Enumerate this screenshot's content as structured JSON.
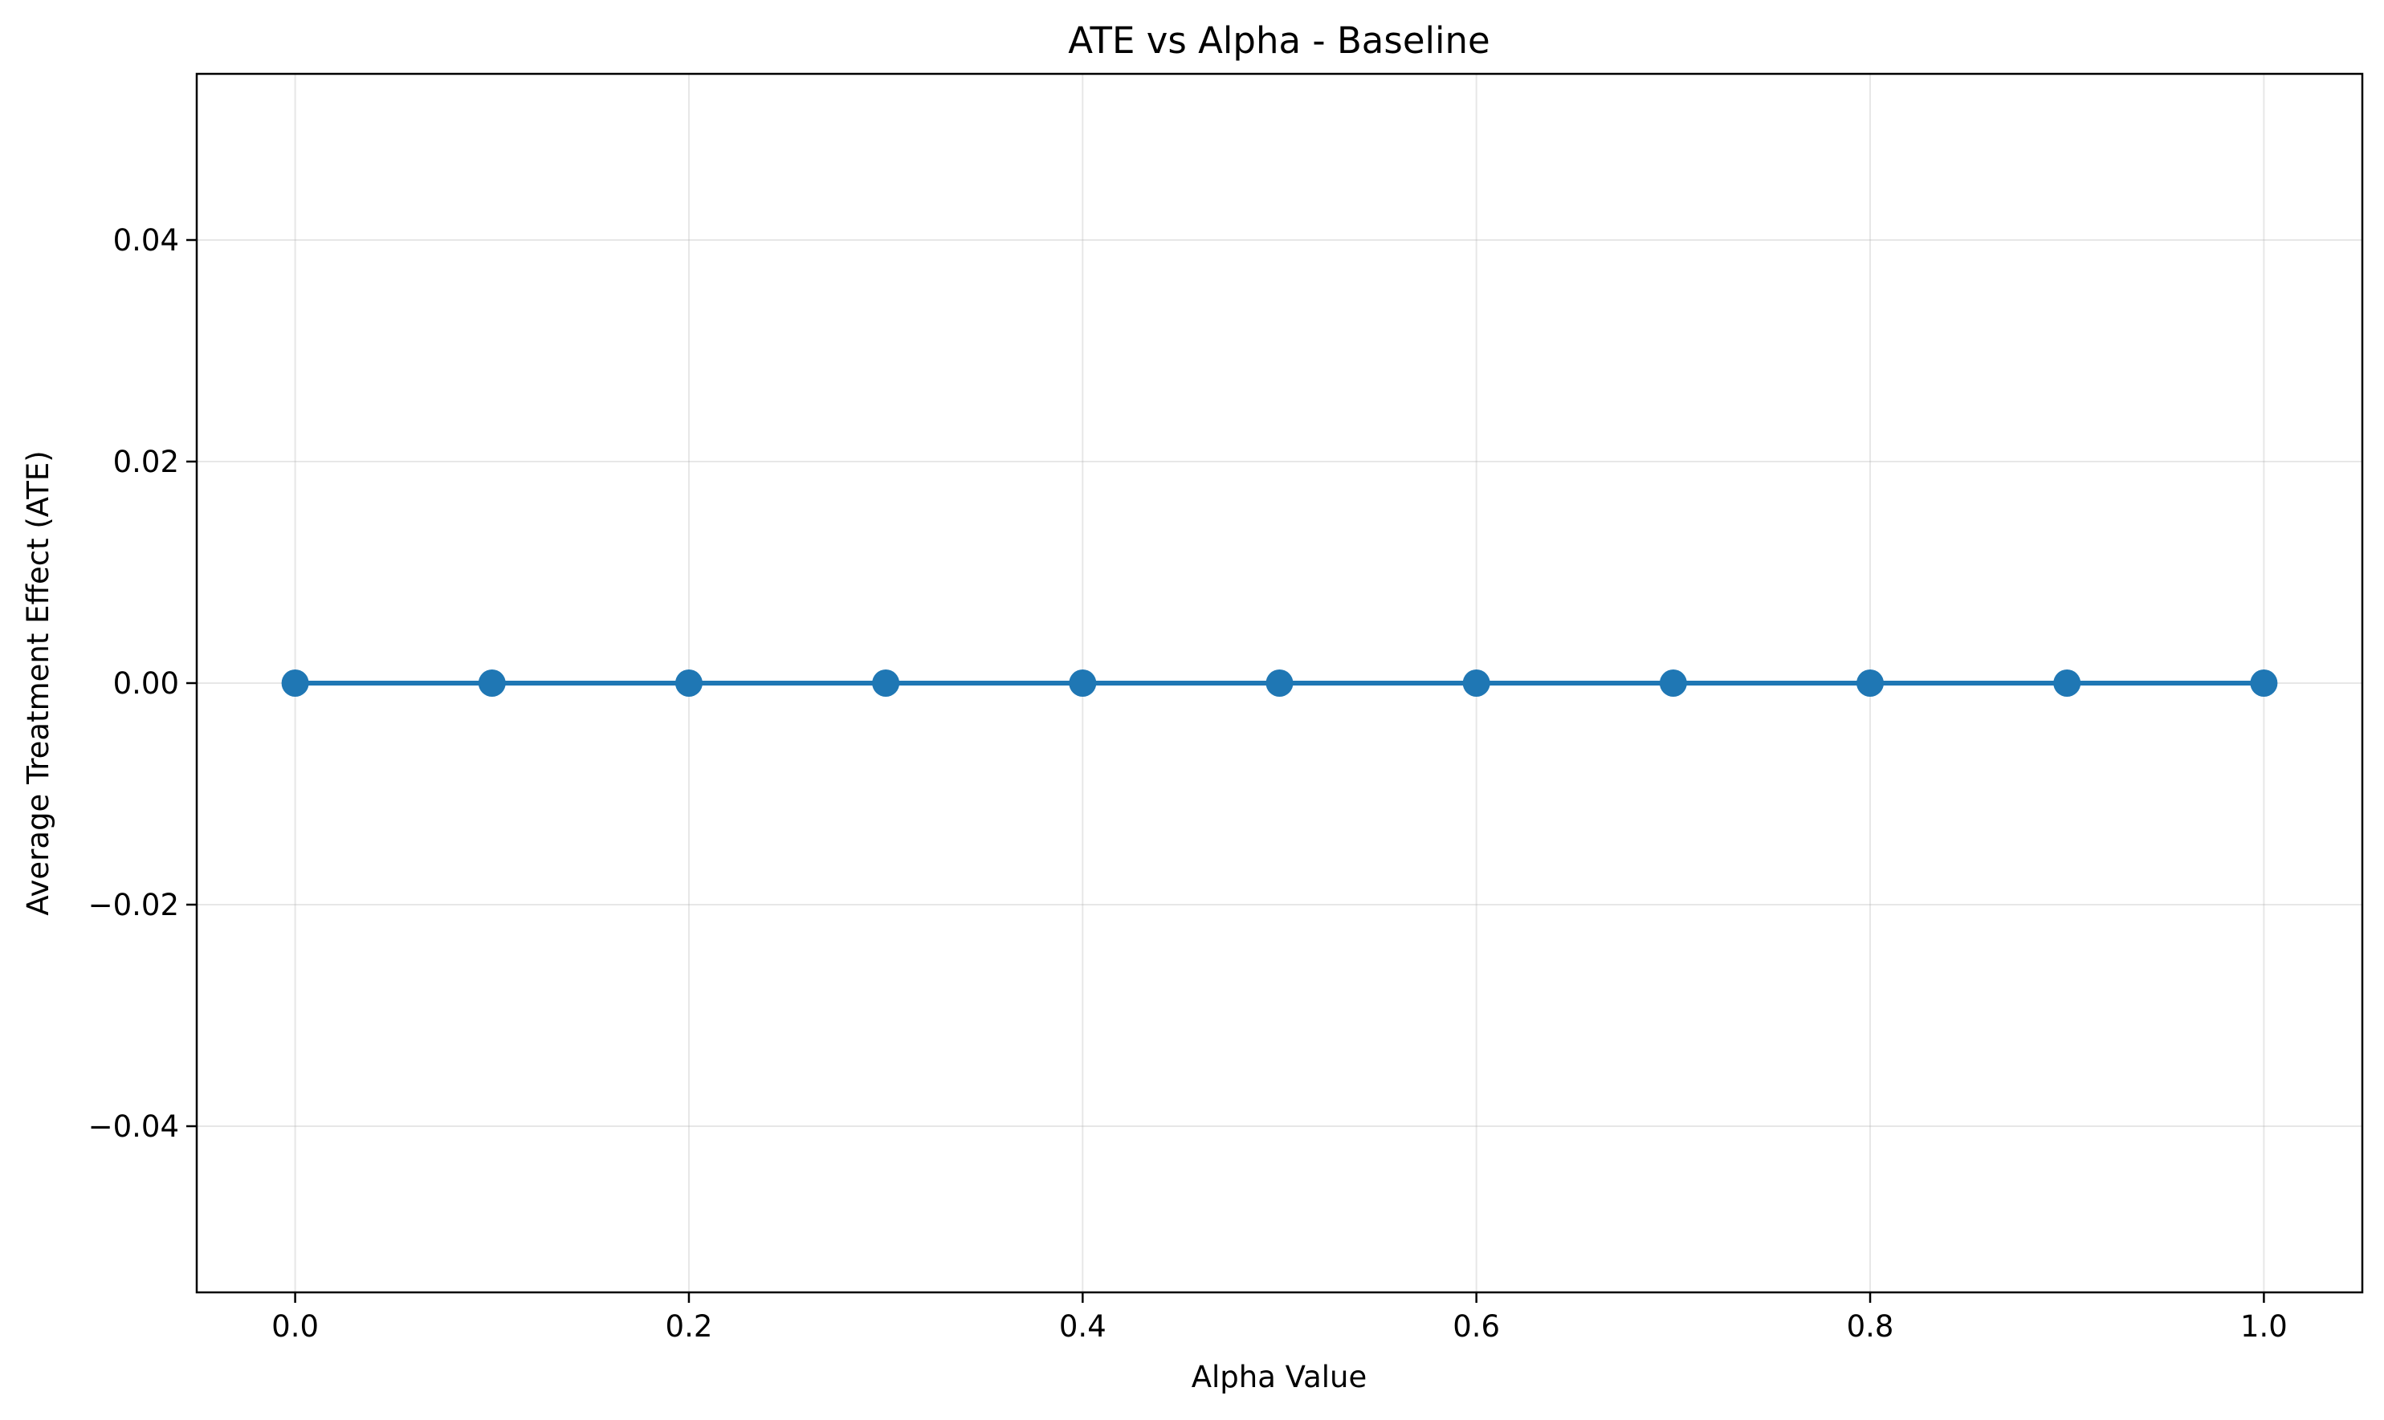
{
  "chart_data": {
    "type": "line",
    "title": "ATE vs Alpha - Baseline",
    "xlabel": "Alpha Value",
    "ylabel": "Average Treatment Effect (ATE)",
    "xlim": [
      -0.05,
      1.05
    ],
    "ylim": [
      -0.055,
      0.055
    ],
    "x_ticks": [
      0.0,
      0.2,
      0.4,
      0.6,
      0.8,
      1.0
    ],
    "x_tick_labels": [
      "0.0",
      "0.2",
      "0.4",
      "0.6",
      "0.8",
      "1.0"
    ],
    "y_ticks": [
      -0.04,
      -0.02,
      0.0,
      0.02,
      0.04
    ],
    "y_tick_labels": [
      "−0.04",
      "−0.02",
      "0.00",
      "0.02",
      "0.04"
    ],
    "grid": true,
    "series": [
      {
        "color": "#1f77b4",
        "marker": "circle",
        "x": [
          0.0,
          0.1,
          0.2,
          0.3,
          0.4,
          0.5,
          0.6,
          0.7,
          0.8,
          0.9,
          1.0
        ],
        "y": [
          0.0,
          0.0,
          0.0,
          0.0,
          0.0,
          0.0,
          0.0,
          0.0,
          0.0,
          0.0,
          0.0
        ]
      }
    ]
  }
}
